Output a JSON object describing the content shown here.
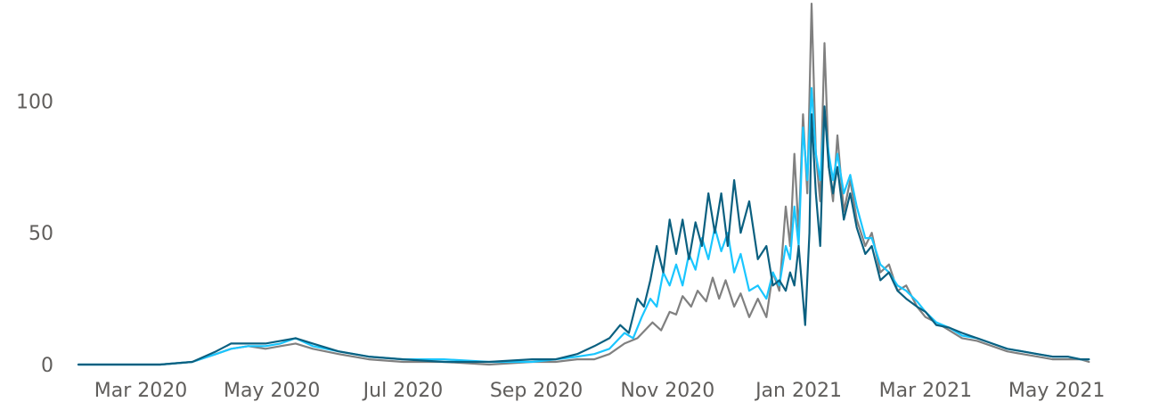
{
  "chart_data": {
    "type": "line",
    "title": "",
    "xlabel": "",
    "ylabel": "",
    "x_range": [
      "2020-02-01",
      "2021-05-20"
    ],
    "ylim": [
      0,
      135
    ],
    "grid": false,
    "legend": "none",
    "y_ticks": [
      {
        "value": 0,
        "label": "0"
      },
      {
        "value": 50,
        "label": "50"
      },
      {
        "value": 100,
        "label": "100"
      }
    ],
    "x_ticks": [
      {
        "value": "2020-03-01",
        "label": "Mar 2020"
      },
      {
        "value": "2020-05-01",
        "label": "May 2020"
      },
      {
        "value": "2020-07-01",
        "label": "Jul 2020"
      },
      {
        "value": "2020-09-01",
        "label": "Sep 2020"
      },
      {
        "value": "2020-11-01",
        "label": "Nov 2020"
      },
      {
        "value": "2021-01-01",
        "label": "Jan 2021"
      },
      {
        "value": "2021-03-01",
        "label": "Mar 2021"
      },
      {
        "value": "2021-05-01",
        "label": "May 2021"
      }
    ],
    "series": [
      {
        "color": "#808080",
        "points": [
          [
            "2020-02-01",
            0
          ],
          [
            "2020-02-20",
            0
          ],
          [
            "2020-03-10",
            0
          ],
          [
            "2020-03-25",
            1
          ],
          [
            "2020-04-05",
            4
          ],
          [
            "2020-04-12",
            6
          ],
          [
            "2020-04-20",
            7
          ],
          [
            "2020-04-28",
            6
          ],
          [
            "2020-05-05",
            7
          ],
          [
            "2020-05-12",
            8
          ],
          [
            "2020-05-20",
            6
          ],
          [
            "2020-06-01",
            4
          ],
          [
            "2020-06-15",
            2
          ],
          [
            "2020-07-01",
            1
          ],
          [
            "2020-07-20",
            1
          ],
          [
            "2020-08-10",
            0
          ],
          [
            "2020-08-30",
            1
          ],
          [
            "2020-09-10",
            1
          ],
          [
            "2020-09-20",
            2
          ],
          [
            "2020-09-28",
            2
          ],
          [
            "2020-10-05",
            4
          ],
          [
            "2020-10-12",
            8
          ],
          [
            "2020-10-18",
            10
          ],
          [
            "2020-10-25",
            16
          ],
          [
            "2020-10-29",
            13
          ],
          [
            "2020-11-02",
            20
          ],
          [
            "2020-11-05",
            19
          ],
          [
            "2020-11-08",
            26
          ],
          [
            "2020-11-12",
            22
          ],
          [
            "2020-11-15",
            28
          ],
          [
            "2020-11-19",
            24
          ],
          [
            "2020-11-22",
            33
          ],
          [
            "2020-11-25",
            25
          ],
          [
            "2020-11-28",
            32
          ],
          [
            "2020-12-02",
            22
          ],
          [
            "2020-12-05",
            27
          ],
          [
            "2020-12-09",
            18
          ],
          [
            "2020-12-13",
            25
          ],
          [
            "2020-12-17",
            18
          ],
          [
            "2020-12-20",
            35
          ],
          [
            "2020-12-23",
            28
          ],
          [
            "2020-12-26",
            60
          ],
          [
            "2020-12-28",
            45
          ],
          [
            "2020-12-30",
            80
          ],
          [
            "2021-01-01",
            50
          ],
          [
            "2021-01-03",
            95
          ],
          [
            "2021-01-05",
            65
          ],
          [
            "2021-01-07",
            137
          ],
          [
            "2021-01-09",
            80
          ],
          [
            "2021-01-11",
            62
          ],
          [
            "2021-01-13",
            122
          ],
          [
            "2021-01-15",
            75
          ],
          [
            "2021-01-17",
            62
          ],
          [
            "2021-01-19",
            87
          ],
          [
            "2021-01-22",
            58
          ],
          [
            "2021-01-25",
            70
          ],
          [
            "2021-01-28",
            55
          ],
          [
            "2021-02-01",
            45
          ],
          [
            "2021-02-04",
            50
          ],
          [
            "2021-02-08",
            35
          ],
          [
            "2021-02-12",
            38
          ],
          [
            "2021-02-16",
            28
          ],
          [
            "2021-02-20",
            30
          ],
          [
            "2021-02-25",
            22
          ],
          [
            "2021-03-01",
            18
          ],
          [
            "2021-03-06",
            16
          ],
          [
            "2021-03-12",
            13
          ],
          [
            "2021-03-18",
            10
          ],
          [
            "2021-03-25",
            9
          ],
          [
            "2021-04-01",
            7
          ],
          [
            "2021-04-08",
            5
          ],
          [
            "2021-04-15",
            4
          ],
          [
            "2021-04-22",
            3
          ],
          [
            "2021-04-29",
            2
          ],
          [
            "2021-05-06",
            2
          ],
          [
            "2021-05-12",
            2
          ],
          [
            "2021-05-16",
            1
          ]
        ]
      },
      {
        "color": "#1ac6ff",
        "points": [
          [
            "2020-02-01",
            0
          ],
          [
            "2020-02-20",
            0
          ],
          [
            "2020-03-10",
            0
          ],
          [
            "2020-03-25",
            1
          ],
          [
            "2020-04-05",
            4
          ],
          [
            "2020-04-12",
            6
          ],
          [
            "2020-04-20",
            7
          ],
          [
            "2020-04-28",
            7
          ],
          [
            "2020-05-05",
            8
          ],
          [
            "2020-05-12",
            10
          ],
          [
            "2020-05-20",
            7
          ],
          [
            "2020-06-01",
            5
          ],
          [
            "2020-06-15",
            3
          ],
          [
            "2020-07-01",
            2
          ],
          [
            "2020-07-20",
            2
          ],
          [
            "2020-08-10",
            1
          ],
          [
            "2020-08-30",
            1
          ],
          [
            "2020-09-10",
            2
          ],
          [
            "2020-09-20",
            3
          ],
          [
            "2020-09-28",
            4
          ],
          [
            "2020-10-05",
            6
          ],
          [
            "2020-10-12",
            12
          ],
          [
            "2020-10-16",
            10
          ],
          [
            "2020-10-20",
            18
          ],
          [
            "2020-10-24",
            25
          ],
          [
            "2020-10-27",
            22
          ],
          [
            "2020-10-30",
            35
          ],
          [
            "2020-11-02",
            30
          ],
          [
            "2020-11-05",
            38
          ],
          [
            "2020-11-08",
            30
          ],
          [
            "2020-11-11",
            42
          ],
          [
            "2020-11-14",
            36
          ],
          [
            "2020-11-17",
            48
          ],
          [
            "2020-11-20",
            40
          ],
          [
            "2020-11-23",
            52
          ],
          [
            "2020-11-26",
            43
          ],
          [
            "2020-11-29",
            50
          ],
          [
            "2020-12-02",
            35
          ],
          [
            "2020-12-05",
            42
          ],
          [
            "2020-12-09",
            28
          ],
          [
            "2020-12-13",
            30
          ],
          [
            "2020-12-17",
            25
          ],
          [
            "2020-12-20",
            35
          ],
          [
            "2020-12-23",
            30
          ],
          [
            "2020-12-26",
            45
          ],
          [
            "2020-12-28",
            40
          ],
          [
            "2020-12-30",
            60
          ],
          [
            "2021-01-01",
            45
          ],
          [
            "2021-01-03",
            90
          ],
          [
            "2021-01-05",
            70
          ],
          [
            "2021-01-07",
            105
          ],
          [
            "2021-01-09",
            80
          ],
          [
            "2021-01-11",
            70
          ],
          [
            "2021-01-13",
            95
          ],
          [
            "2021-01-15",
            80
          ],
          [
            "2021-01-17",
            70
          ],
          [
            "2021-01-19",
            80
          ],
          [
            "2021-01-22",
            65
          ],
          [
            "2021-01-25",
            72
          ],
          [
            "2021-01-28",
            60
          ],
          [
            "2021-02-01",
            48
          ],
          [
            "2021-02-04",
            48
          ],
          [
            "2021-02-08",
            38
          ],
          [
            "2021-02-12",
            35
          ],
          [
            "2021-02-16",
            30
          ],
          [
            "2021-02-20",
            28
          ],
          [
            "2021-02-25",
            24
          ],
          [
            "2021-03-01",
            20
          ],
          [
            "2021-03-06",
            16
          ],
          [
            "2021-03-12",
            14
          ],
          [
            "2021-03-18",
            11
          ],
          [
            "2021-03-25",
            10
          ],
          [
            "2021-04-01",
            8
          ],
          [
            "2021-04-08",
            6
          ],
          [
            "2021-04-15",
            5
          ],
          [
            "2021-04-22",
            4
          ],
          [
            "2021-04-29",
            3
          ],
          [
            "2021-05-06",
            3
          ],
          [
            "2021-05-12",
            2
          ],
          [
            "2021-05-16",
            2
          ]
        ]
      },
      {
        "color": "#0b6080",
        "points": [
          [
            "2020-02-01",
            0
          ],
          [
            "2020-02-20",
            0
          ],
          [
            "2020-03-10",
            0
          ],
          [
            "2020-03-25",
            1
          ],
          [
            "2020-04-05",
            5
          ],
          [
            "2020-04-12",
            8
          ],
          [
            "2020-04-20",
            8
          ],
          [
            "2020-04-28",
            8
          ],
          [
            "2020-05-05",
            9
          ],
          [
            "2020-05-12",
            10
          ],
          [
            "2020-05-20",
            8
          ],
          [
            "2020-06-01",
            5
          ],
          [
            "2020-06-15",
            3
          ],
          [
            "2020-07-01",
            2
          ],
          [
            "2020-07-20",
            1
          ],
          [
            "2020-08-10",
            1
          ],
          [
            "2020-08-30",
            2
          ],
          [
            "2020-09-10",
            2
          ],
          [
            "2020-09-20",
            4
          ],
          [
            "2020-09-28",
            7
          ],
          [
            "2020-10-05",
            10
          ],
          [
            "2020-10-10",
            15
          ],
          [
            "2020-10-14",
            12
          ],
          [
            "2020-10-18",
            25
          ],
          [
            "2020-10-21",
            22
          ],
          [
            "2020-10-24",
            32
          ],
          [
            "2020-10-27",
            45
          ],
          [
            "2020-10-30",
            35
          ],
          [
            "2020-11-02",
            55
          ],
          [
            "2020-11-05",
            42
          ],
          [
            "2020-11-08",
            55
          ],
          [
            "2020-11-11",
            40
          ],
          [
            "2020-11-14",
            54
          ],
          [
            "2020-11-17",
            45
          ],
          [
            "2020-11-20",
            65
          ],
          [
            "2020-11-23",
            50
          ],
          [
            "2020-11-26",
            65
          ],
          [
            "2020-11-29",
            45
          ],
          [
            "2020-12-02",
            70
          ],
          [
            "2020-12-05",
            50
          ],
          [
            "2020-12-09",
            62
          ],
          [
            "2020-12-13",
            40
          ],
          [
            "2020-12-17",
            45
          ],
          [
            "2020-12-20",
            30
          ],
          [
            "2020-12-23",
            32
          ],
          [
            "2020-12-26",
            28
          ],
          [
            "2020-12-28",
            35
          ],
          [
            "2020-12-30",
            30
          ],
          [
            "2021-01-01",
            45
          ],
          [
            "2021-01-03",
            25
          ],
          [
            "2021-01-04",
            15
          ],
          [
            "2021-01-06",
            50
          ],
          [
            "2021-01-07",
            95
          ],
          [
            "2021-01-09",
            65
          ],
          [
            "2021-01-11",
            45
          ],
          [
            "2021-01-13",
            98
          ],
          [
            "2021-01-15",
            75
          ],
          [
            "2021-01-17",
            65
          ],
          [
            "2021-01-19",
            75
          ],
          [
            "2021-01-22",
            55
          ],
          [
            "2021-01-25",
            65
          ],
          [
            "2021-01-28",
            52
          ],
          [
            "2021-02-01",
            42
          ],
          [
            "2021-02-04",
            45
          ],
          [
            "2021-02-08",
            32
          ],
          [
            "2021-02-12",
            35
          ],
          [
            "2021-02-16",
            28
          ],
          [
            "2021-02-20",
            25
          ],
          [
            "2021-02-25",
            22
          ],
          [
            "2021-03-01",
            20
          ],
          [
            "2021-03-06",
            15
          ],
          [
            "2021-03-12",
            14
          ],
          [
            "2021-03-18",
            12
          ],
          [
            "2021-03-25",
            10
          ],
          [
            "2021-04-01",
            8
          ],
          [
            "2021-04-08",
            6
          ],
          [
            "2021-04-15",
            5
          ],
          [
            "2021-04-22",
            4
          ],
          [
            "2021-04-29",
            3
          ],
          [
            "2021-05-06",
            3
          ],
          [
            "2021-05-12",
            2
          ],
          [
            "2021-05-16",
            2
          ]
        ]
      }
    ]
  }
}
